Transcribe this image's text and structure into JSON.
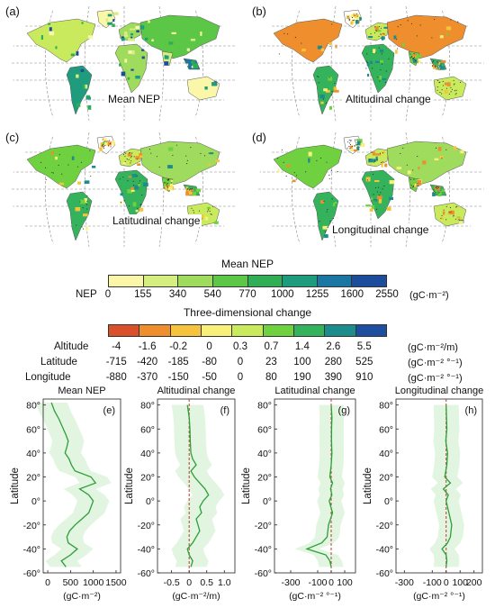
{
  "maps": [
    {
      "letter": "(a)",
      "caption": "Mean NEP"
    },
    {
      "letter": "(b)",
      "caption": "Altitudinal change"
    },
    {
      "letter": "(c)",
      "caption": "Latitudinal change"
    },
    {
      "letter": "(d)",
      "caption": "Longitudinal change"
    }
  ],
  "nep_legend": {
    "title": "Mean NEP",
    "row_label": "NEP",
    "ticks": [
      "0",
      "155",
      "340",
      "540",
      "770",
      "1000",
      "1255",
      "1600",
      "2550"
    ],
    "unit": "(gC·m⁻²)",
    "colors": [
      "#fbf7a8",
      "#d5ee80",
      "#9fdb5c",
      "#5cc646",
      "#2fae56",
      "#1f9b7e",
      "#1a77a3",
      "#1b4d9c"
    ]
  },
  "change_legend": {
    "title": "Three-dimensional change",
    "colors": [
      "#d9502b",
      "#ee8e2d",
      "#f6c33c",
      "#f9f07a",
      "#c9ea5d",
      "#6fd13f",
      "#34b25c",
      "#1d8c8c",
      "#1e4f9e"
    ],
    "rows": [
      {
        "label": "Altitude",
        "ticks": [
          "-4",
          "-1.6",
          "-0.2",
          "0",
          "0.3",
          "0.7",
          "1.4",
          "2.6",
          "5.5"
        ],
        "unit": "(gC·m⁻²/m)"
      },
      {
        "label": "Latitude",
        "ticks": [
          "-715",
          "-420",
          "-185",
          "-80",
          "0",
          "23",
          "100",
          "280",
          "525"
        ],
        "unit": "(gC·m⁻² °⁻¹)"
      },
      {
        "label": "Longitude",
        "ticks": [
          "-880",
          "-370",
          "-150",
          "-50",
          "0",
          "80",
          "190",
          "390",
          "910"
        ],
        "unit": "(gC·m⁻² °⁻¹)"
      }
    ]
  },
  "profiles": {
    "ylabel": "Latitude",
    "yticks": [
      "80°",
      "60°",
      "40°",
      "20°",
      "0°",
      "-20°",
      "-40°",
      "-60°"
    ],
    "panels": [
      {
        "letter": "(e)",
        "title": "Mean NEP",
        "xunit": "(gC·m⁻²)",
        "xticks": [
          "0",
          "500",
          "1000",
          "1500"
        ]
      },
      {
        "letter": "(f)",
        "title": "Altitudinal change",
        "xunit": "(gC·m⁻²/m)",
        "xticks": [
          "-0.5",
          "0",
          "0.5",
          "1.0"
        ]
      },
      {
        "letter": "(g)",
        "title": "Latitudinal change",
        "xunit": "(gC·m⁻² °⁻¹)",
        "xticks": [
          "-300",
          "-100",
          "0",
          "100"
        ]
      },
      {
        "letter": "(h)",
        "title": "Longitudinal change",
        "xunit": "(gC·m⁻² °⁻¹)",
        "xticks": [
          "-300",
          "-100",
          "0",
          "100",
          "200"
        ]
      }
    ]
  },
  "chart_data": [
    {
      "type": "line",
      "panel": "(e)",
      "title": "Mean NEP",
      "xlabel": "(gC·m⁻²)",
      "ylabel": "Latitude",
      "xlim": [
        -100,
        1600
      ],
      "ylim": [
        -60,
        85
      ],
      "y": [
        82,
        75,
        68,
        62,
        55,
        50,
        45,
        40,
        35,
        30,
        25,
        20,
        15,
        10,
        5,
        0,
        -5,
        -10,
        -15,
        -20,
        -25,
        -30,
        -35,
        -40,
        -45,
        -50,
        -55
      ],
      "x": [
        80,
        150,
        250,
        320,
        400,
        450,
        420,
        380,
        470,
        520,
        600,
        950,
        1050,
        700,
        900,
        1000,
        950,
        900,
        750,
        600,
        480,
        420,
        450,
        650,
        500,
        300,
        400
      ]
    },
    {
      "type": "line",
      "panel": "(f)",
      "title": "Altitudinal change",
      "xlabel": "(gC·m⁻²/m)",
      "ylabel": "Latitude",
      "xlim": [
        -0.9,
        1.3
      ],
      "ylim": [
        -60,
        85
      ],
      "y": [
        80,
        70,
        60,
        50,
        40,
        35,
        30,
        25,
        20,
        15,
        10,
        5,
        0,
        -5,
        -10,
        -15,
        -20,
        -25,
        -30,
        -35,
        -40,
        -45,
        -50,
        -55
      ],
      "x": [
        -0.05,
        0.0,
        0.02,
        0.03,
        0.05,
        0.1,
        0.2,
        0.05,
        0.15,
        0.3,
        0.45,
        0.55,
        0.4,
        0.3,
        0.35,
        0.2,
        0.25,
        0.3,
        0.2,
        0.1,
        -0.05,
        0.0,
        0.1,
        0.05
      ]
    },
    {
      "type": "line",
      "panel": "(g)",
      "title": "Latitudinal change",
      "xlabel": "(gC·m⁻² °⁻¹)",
      "ylabel": "Latitude",
      "xlim": [
        -420,
        180
      ],
      "ylim": [
        -60,
        85
      ],
      "y": [
        80,
        70,
        60,
        50,
        40,
        30,
        20,
        15,
        10,
        5,
        0,
        -10,
        -20,
        -30,
        -35,
        -40,
        -45,
        -50,
        -55
      ],
      "x": [
        0,
        5,
        3,
        2,
        5,
        0,
        -10,
        10,
        -5,
        5,
        -15,
        10,
        -20,
        -30,
        -70,
        -180,
        -40,
        -10,
        0
      ]
    },
    {
      "type": "line",
      "panel": "(h)",
      "title": "Longitudinal change",
      "xlabel": "(gC·m⁻² °⁻¹)",
      "ylabel": "Latitude",
      "xlim": [
        -360,
        260
      ],
      "ylim": [
        -60,
        85
      ],
      "y": [
        80,
        70,
        60,
        50,
        40,
        30,
        20,
        15,
        10,
        5,
        0,
        -10,
        -20,
        -30,
        -35,
        -40,
        -45,
        -50,
        -55
      ],
      "x": [
        0,
        2,
        5,
        -3,
        10,
        5,
        -10,
        30,
        -20,
        15,
        0,
        20,
        40,
        30,
        10,
        -30,
        0,
        5,
        0
      ]
    }
  ]
}
